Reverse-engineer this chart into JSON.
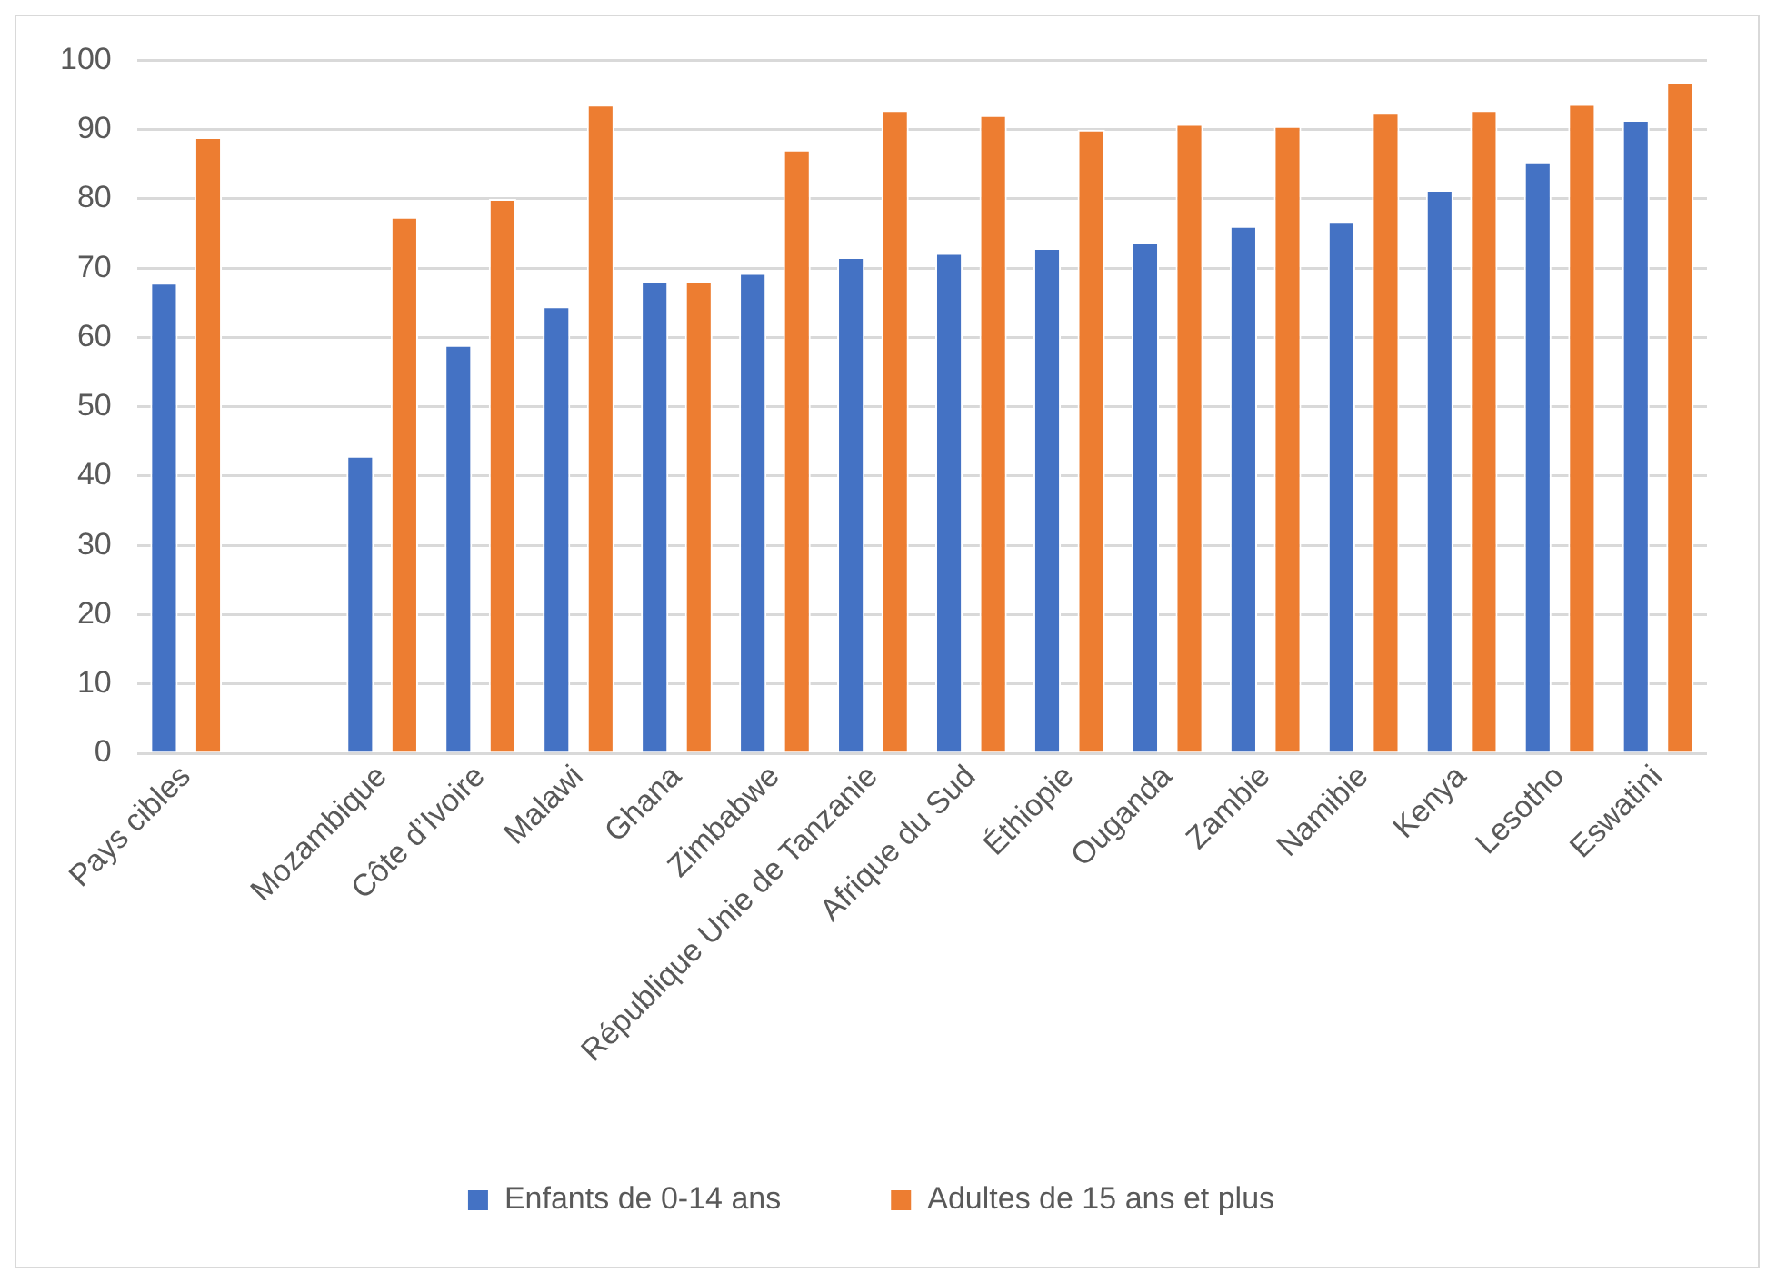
{
  "chart_data": {
    "type": "bar",
    "categories": [
      "Pays cibles",
      null,
      "Mozambique",
      "Côte d’Ivoire",
      "Malawi",
      "Ghana",
      "Zimbabwe",
      "République Unie de Tanzanie",
      "Afrique du Sud",
      "Éthiopie",
      "Ouganda",
      "Zambie",
      "Namibie",
      "Kenya",
      "Lesotho",
      "Eswatini"
    ],
    "series": [
      {
        "name": "Enfants de 0-14 ans",
        "color": "#4472c4",
        "values": [
          67.9,
          null,
          42.9,
          58.9,
          64.5,
          68.1,
          69.3,
          71.6,
          72.2,
          72.9,
          73.8,
          76.1,
          76.8,
          81.3,
          85.4,
          91.4
        ]
      },
      {
        "name": "Adultes de 15 ans et plus",
        "color": "#ed7d31",
        "values": [
          88.9,
          null,
          77.4,
          80,
          93.6,
          68.1,
          87.1,
          92.8,
          92.1,
          90,
          90.8,
          90.5,
          92.4,
          92.8,
          93.7,
          96.9
        ]
      }
    ],
    "ylim": [
      0,
      100
    ],
    "yticks": [
      0,
      10,
      20,
      30,
      40,
      50,
      60,
      70,
      80,
      90,
      100
    ],
    "grid": "y",
    "legend": "bottom"
  }
}
